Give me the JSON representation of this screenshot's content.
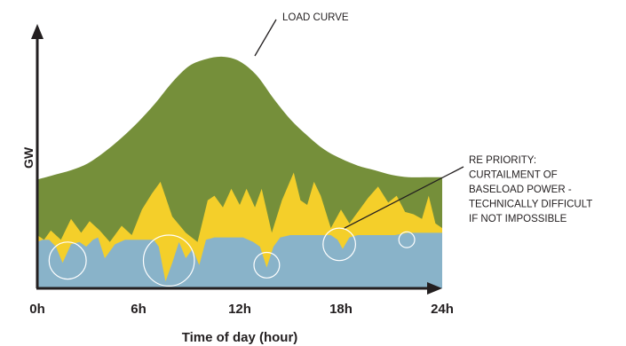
{
  "chart_data": {
    "type": "area",
    "title": "",
    "xlabel": "Time of day (hour)",
    "ylabel": "GW",
    "xlim": [
      0,
      24
    ],
    "ylim": [
      0,
      100
    ],
    "x_ticks": [
      {
        "value": 0,
        "label": "0h"
      },
      {
        "value": 6,
        "label": "6h"
      },
      {
        "value": 12,
        "label": "12h"
      },
      {
        "value": 18,
        "label": "18h"
      },
      {
        "value": 24,
        "label": "24h"
      }
    ],
    "grid": false,
    "legend": "none",
    "series": [
      {
        "role": "load-curve",
        "color": "#758f3a",
        "x": [
          0,
          1,
          2,
          3,
          4,
          5,
          6,
          7,
          8,
          9,
          10,
          11,
          12,
          13,
          14,
          15,
          16,
          17,
          18,
          19,
          20,
          21,
          22,
          23,
          24
        ],
        "values": [
          47,
          49,
          51,
          54,
          59,
          65,
          72,
          80,
          89,
          96,
          99,
          100,
          98,
          92,
          82,
          73,
          66,
          60,
          56,
          53,
          51,
          49,
          48,
          48,
          48
        ]
      },
      {
        "role": "renewables",
        "color": "#f4cf2a",
        "x": [
          0,
          0.4,
          0.8,
          1.4,
          2.0,
          2.6,
          3.1,
          3.7,
          4.3,
          5.0,
          5.6,
          6.2,
          6.8,
          7.3,
          8.0,
          8.8,
          9.5,
          10.1,
          10.5,
          11.0,
          11.5,
          12.0,
          12.4,
          12.9,
          13.3,
          13.9,
          14.5,
          15.2,
          15.6,
          16.0,
          16.4,
          16.8,
          17.4,
          18.0,
          18.5,
          19.0,
          19.6,
          20.2,
          20.8,
          21.3,
          21.8,
          22.3,
          22.8,
          23.2,
          23.6,
          24
        ],
        "values": [
          23,
          21,
          25,
          21,
          30,
          24,
          29,
          25,
          20,
          27,
          23,
          34,
          41,
          46,
          31,
          24,
          20,
          38,
          40,
          35,
          43,
          36,
          43,
          35,
          43,
          24,
          38,
          50,
          38,
          36,
          46,
          40,
          26,
          34,
          28,
          33,
          39,
          44,
          37,
          40,
          33,
          32,
          30,
          40,
          28,
          26
        ]
      },
      {
        "role": "baseload",
        "color": "#89b3c9",
        "x": [
          0,
          0.3,
          0.7,
          1.1,
          1.5,
          2.0,
          2.5,
          2.9,
          3.3,
          3.6,
          4.0,
          4.6,
          5.2,
          5.8,
          6.4,
          6.9,
          7.2,
          7.6,
          8.0,
          8.4,
          8.8,
          9.2,
          9.6,
          10.0,
          10.5,
          11.0,
          11.6,
          12.2,
          12.8,
          13.2,
          13.6,
          14.0,
          14.4,
          15.0,
          15.8,
          16.6,
          17.4,
          17.8,
          18.1,
          18.5,
          19.0,
          19.6,
          20.4,
          21.2,
          22.0,
          22.6,
          23.2,
          24
        ],
        "values": [
          20,
          21,
          21,
          18,
          11,
          19,
          20,
          18,
          21,
          22,
          13,
          19,
          21,
          21,
          21,
          21,
          18,
          3,
          11,
          20,
          13,
          17,
          10,
          21,
          22,
          22,
          22,
          22,
          20,
          18,
          9,
          18,
          22,
          23,
          23,
          23,
          23,
          21,
          17,
          22,
          23,
          23,
          23,
          23,
          24,
          24,
          24,
          24
        ]
      }
    ],
    "annotations": [
      {
        "lines": [
          "LOAD CURVE"
        ],
        "points_to": {
          "x": 13,
          "y": 99
        }
      },
      {
        "lines": [
          "RE PRIORITY:",
          "CURTAILMENT OF",
          "BASELOAD POWER -",
          "TECHNICALLY DIFFICULT",
          "IF NOT IMPOSSIBLE"
        ],
        "points_to": {
          "x": 18.2,
          "y": 26
        }
      }
    ],
    "highlights": [
      {
        "cx": 1.8,
        "cy": 12,
        "r": 8
      },
      {
        "cx": 7.8,
        "cy": 12,
        "r": 11
      },
      {
        "cx": 13.6,
        "cy": 10,
        "r": 5.5
      },
      {
        "cx": 17.9,
        "cy": 19,
        "r": 7
      },
      {
        "cx": 21.9,
        "cy": 21,
        "r": 3.4
      }
    ]
  }
}
